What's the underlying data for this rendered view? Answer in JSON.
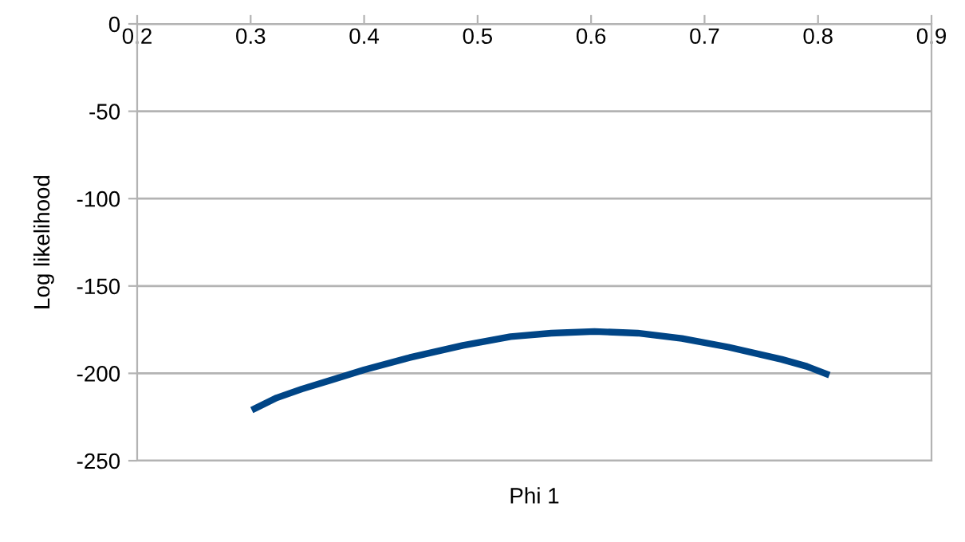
{
  "chart_data": {
    "type": "line",
    "xlabel": "Phi 1",
    "ylabel": "Log likelihood",
    "x": [
      0.301,
      0.323,
      0.345,
      0.37,
      0.4,
      0.44,
      0.487,
      0.529,
      0.565,
      0.603,
      0.641,
      0.68,
      0.721,
      0.768,
      0.79,
      0.81
    ],
    "series": [
      {
        "color": "#004586",
        "values": [
          -221,
          -214,
          -209,
          -204,
          -198,
          -191,
          -184,
          -179,
          -177,
          -176,
          -177,
          -180,
          -185,
          -192,
          -196,
          -201
        ]
      }
    ],
    "xlim": [
      0.2,
      0.9
    ],
    "xticks": [
      0.2,
      0.3,
      0.4,
      0.5,
      0.6,
      0.7,
      0.8,
      0.9
    ],
    "ylim": [
      -250,
      0
    ],
    "yticks": [
      -250,
      -200,
      -150,
      -100,
      -50,
      0
    ],
    "grid": "y",
    "marker": "none",
    "line_style": "solid"
  }
}
